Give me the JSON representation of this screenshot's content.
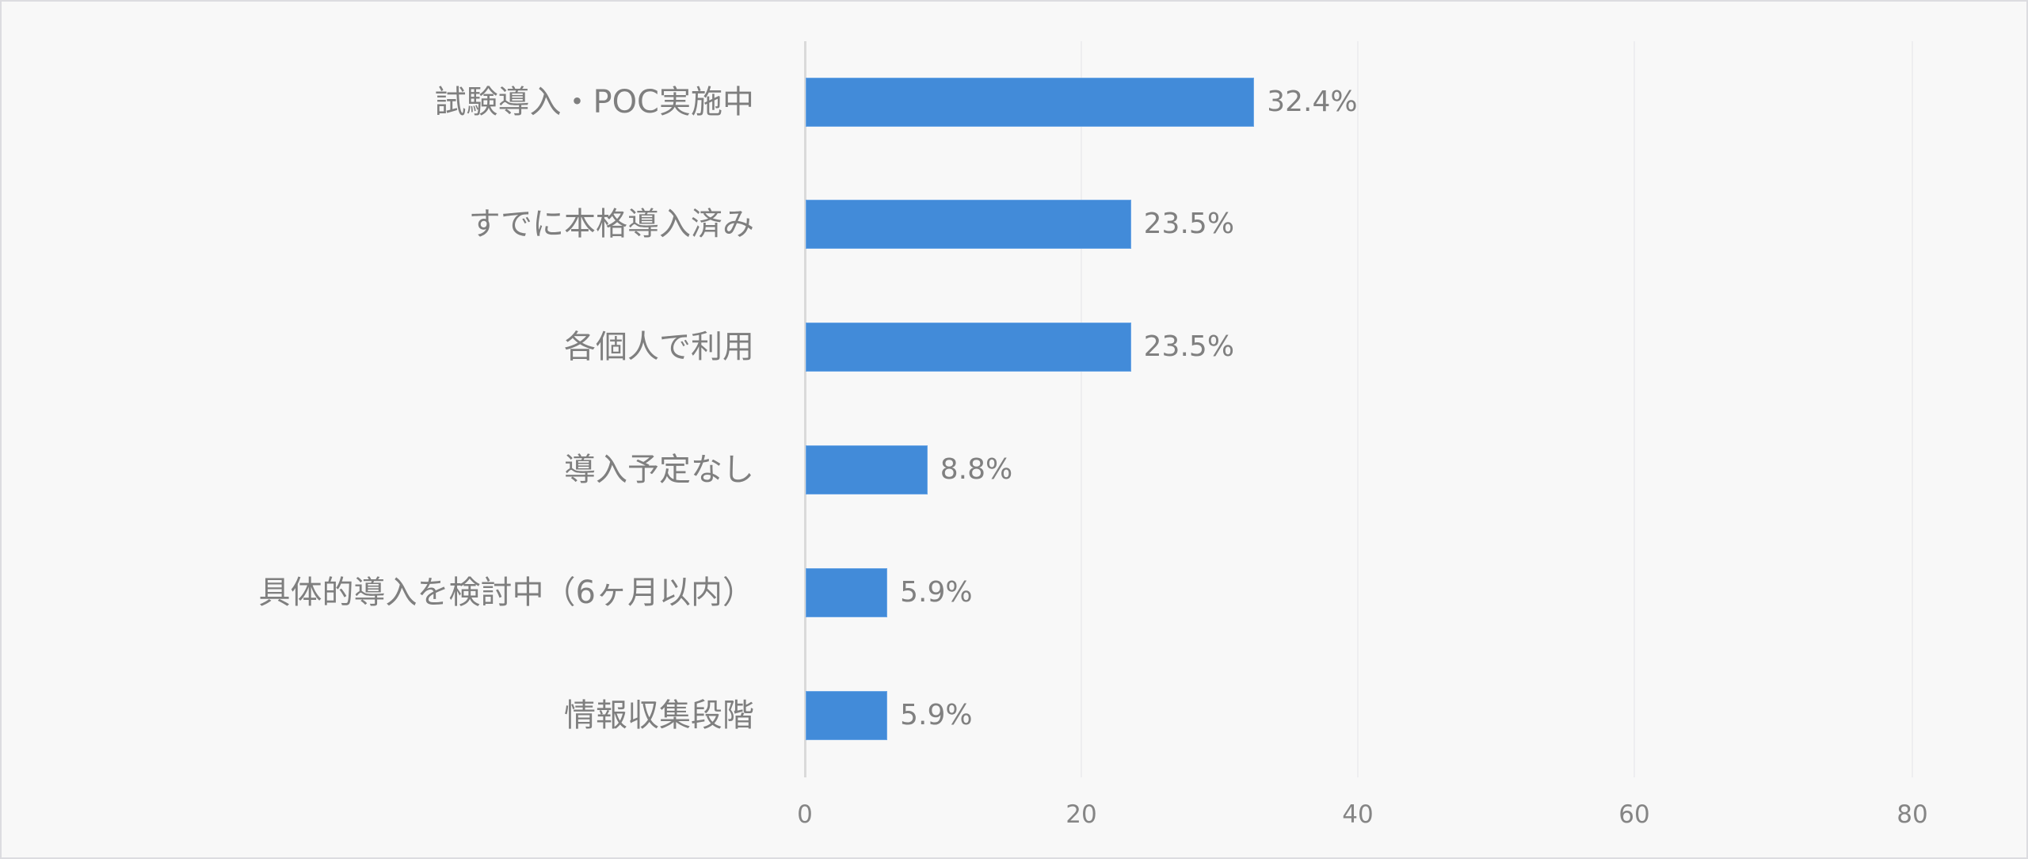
{
  "chart_data": {
    "type": "bar",
    "orientation": "horizontal",
    "title": "",
    "xlabel": "",
    "ylabel": "",
    "categories": [
      "試験導入・POC実施中",
      "すでに本格導入済み",
      "各個人で利用",
      "導入予定なし",
      "具体的導入を検討中（6ヶ月以内）",
      "情報収集段階"
    ],
    "values": [
      32.4,
      23.5,
      23.5,
      8.8,
      5.9,
      5.9
    ],
    "value_labels": [
      "32.4%",
      "23.5%",
      "23.5%",
      "8.8%",
      "5.9%",
      "5.9%"
    ],
    "xlim": [
      0,
      80
    ],
    "x_ticks": [
      "0",
      "20",
      "40",
      "60",
      "80"
    ],
    "grid": "vertical",
    "legend": "none",
    "bar_color": "#428bd9"
  }
}
